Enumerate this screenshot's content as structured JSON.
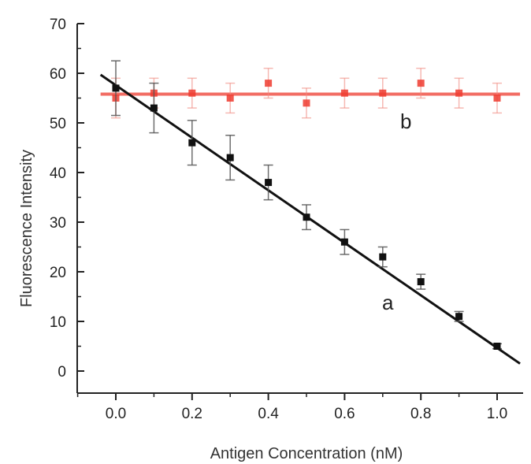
{
  "chart_data": {
    "type": "scatter",
    "xlabel": "Antigen Concentration (nM)",
    "ylabel": "Fluorescence Intensity",
    "xlim": [
      -0.05,
      1.07
    ],
    "ylim": [
      -5,
      70
    ],
    "x_ticks": [
      "0.0",
      "0.2",
      "0.4",
      "0.6",
      "0.8",
      "1.0"
    ],
    "x_tick_values": [
      0,
      0.2,
      0.4,
      0.6,
      0.8,
      1.0
    ],
    "y_ticks": [
      "0",
      "10",
      "20",
      "30",
      "40",
      "50",
      "60",
      "70"
    ],
    "y_tick_values": [
      0,
      10,
      20,
      30,
      40,
      50,
      60,
      70
    ],
    "grid": false,
    "series": [
      {
        "name": "a",
        "color": "#111111",
        "x": [
          0,
          0.1,
          0.2,
          0.3,
          0.4,
          0.5,
          0.6,
          0.7,
          0.8,
          0.9,
          1.0
        ],
        "y": [
          57,
          53,
          46,
          43,
          38,
          31,
          26,
          23,
          18,
          11,
          5
        ],
        "error": [
          5.5,
          5,
          4.5,
          4.5,
          3.5,
          2.5,
          2.5,
          2,
          1.5,
          1,
          0.5
        ],
        "fit": {
          "x": [
            -0.04,
            1.06
          ],
          "y": [
            59.7,
            1.5
          ]
        }
      },
      {
        "name": "b",
        "color": "#ee3b2f",
        "x": [
          0,
          0.1,
          0.2,
          0.3,
          0.4,
          0.5,
          0.6,
          0.7,
          0.8,
          0.9,
          1.0
        ],
        "y": [
          55,
          56,
          56,
          55,
          58,
          54,
          56,
          56,
          58,
          56,
          55
        ],
        "error": [
          4,
          3,
          3,
          3,
          3,
          3,
          3,
          3,
          3,
          3,
          3
        ],
        "fit": {
          "x": [
            -0.04,
            1.06
          ],
          "y": [
            55.8,
            55.8
          ]
        }
      }
    ]
  }
}
